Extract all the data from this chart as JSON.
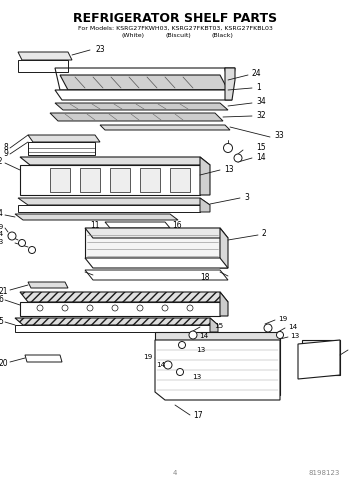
{
  "title": "REFRIGERATOR SHELF PARTS",
  "subtitle_line1": "For Models: KSRG27FKWH03, KSRG27FKBT03, KSRG27FKBL03",
  "subtitle_line2_a": "(White)",
  "subtitle_line2_b": "(Biscuit)",
  "subtitle_line2_c": "(Black)",
  "page_num": "4",
  "doc_num": "8198123",
  "bg_color": "#ffffff",
  "lc": "#1a1a1a",
  "tc": "#000000"
}
